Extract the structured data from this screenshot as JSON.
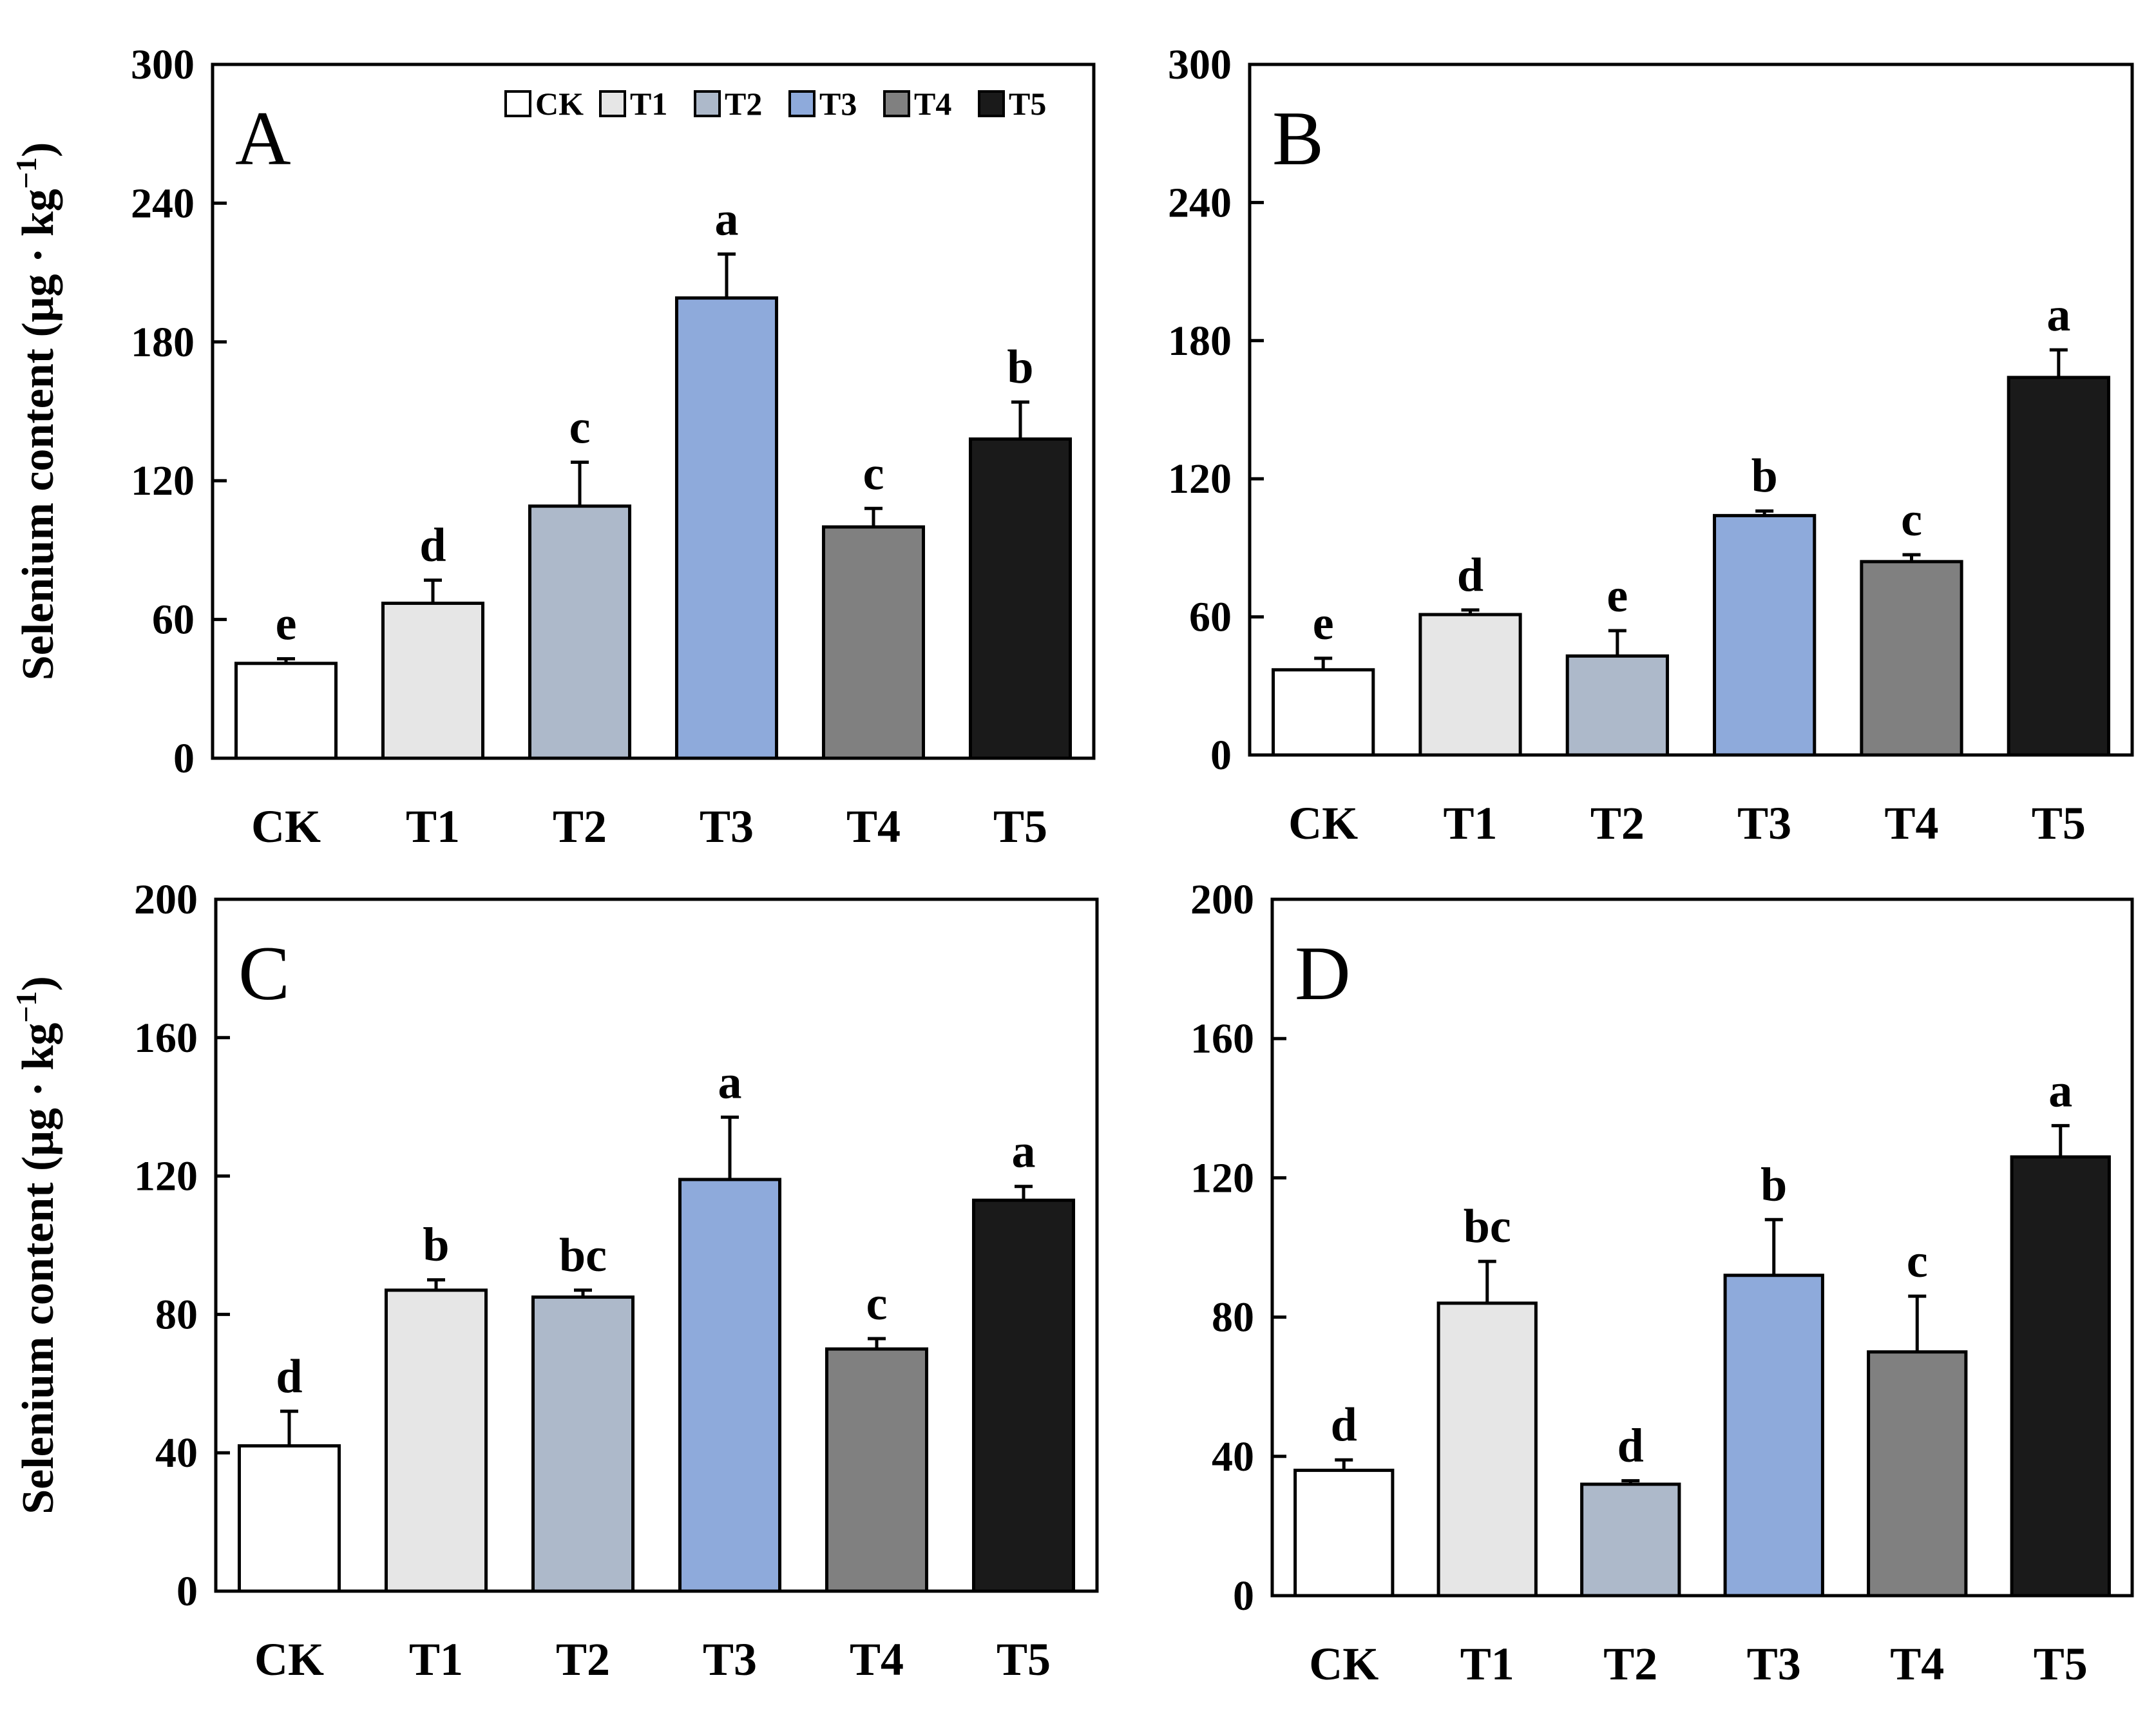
{
  "figure": {
    "ylabel_text": "Selenium content (μg · kg",
    "ylabel_sup": "−1",
    "ylabel_close": ")"
  },
  "legend": {
    "items": [
      {
        "label": "CK",
        "color": "#ffffff"
      },
      {
        "label": "T1",
        "color": "#e6e6e6"
      },
      {
        "label": "T2",
        "color": "#adb9ca"
      },
      {
        "label": "T3",
        "color": "#8eaadb"
      },
      {
        "label": "T4",
        "color": "#808080"
      },
      {
        "label": "T5",
        "color": "#1a1a1a"
      }
    ]
  },
  "chart_data": [
    {
      "type": "bar",
      "panel": "A",
      "categories": [
        "CK",
        "T1",
        "T2",
        "T3",
        "T4",
        "T5"
      ],
      "values": [
        41,
        67,
        109,
        199,
        100,
        138
      ],
      "errors": [
        2,
        10,
        19,
        19,
        8,
        16
      ],
      "letters": [
        "e",
        "d",
        "c",
        "a",
        "c",
        "b"
      ],
      "ylim": [
        0,
        300
      ],
      "yticks": [
        0,
        60,
        120,
        180,
        240,
        300
      ],
      "ylabel": "Selenium content (μg · kg−1)"
    },
    {
      "type": "bar",
      "panel": "B",
      "categories": [
        "CK",
        "T1",
        "T2",
        "T3",
        "T4",
        "T5"
      ],
      "values": [
        37,
        61,
        43,
        104,
        84,
        164
      ],
      "errors": [
        5,
        2,
        11,
        2,
        3,
        12
      ],
      "letters": [
        "e",
        "d",
        "e",
        "b",
        "c",
        "a"
      ],
      "ylim": [
        0,
        300
      ],
      "yticks": [
        0,
        60,
        120,
        180,
        240,
        300
      ],
      "ylabel": ""
    },
    {
      "type": "bar",
      "panel": "C",
      "categories": [
        "CK",
        "T1",
        "T2",
        "T3",
        "T4",
        "T5"
      ],
      "values": [
        42,
        87,
        85,
        119,
        70,
        113
      ],
      "errors": [
        10,
        3,
        2,
        18,
        3,
        4
      ],
      "letters": [
        "d",
        "b",
        "bc",
        "a",
        "c",
        "a"
      ],
      "ylim": [
        0,
        200
      ],
      "yticks": [
        0,
        40,
        80,
        120,
        160,
        200
      ],
      "ylabel": "Selenium content (μg · kg−1)"
    },
    {
      "type": "bar",
      "panel": "D",
      "categories": [
        "CK",
        "T1",
        "T2",
        "T3",
        "T4",
        "T5"
      ],
      "values": [
        36,
        84,
        32,
        92,
        70,
        126
      ],
      "errors": [
        3,
        12,
        1,
        16,
        16,
        9
      ],
      "letters": [
        "d",
        "bc",
        "d",
        "b",
        "c",
        "a"
      ],
      "ylim": [
        0,
        200
      ],
      "yticks": [
        0,
        40,
        80,
        120,
        160,
        200
      ],
      "ylabel": ""
    }
  ]
}
